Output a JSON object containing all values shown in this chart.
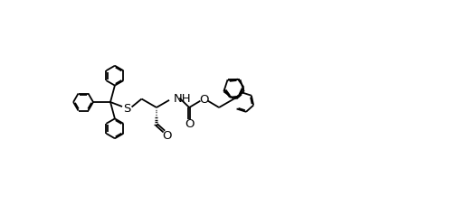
{
  "background": "#ffffff",
  "line_color": "#000000",
  "lw": 1.3,
  "figsize": [
    5.04,
    2.28
  ],
  "dpi": 100,
  "xlim": [
    0,
    5.04
  ],
  "ylim": [
    0,
    2.28
  ]
}
